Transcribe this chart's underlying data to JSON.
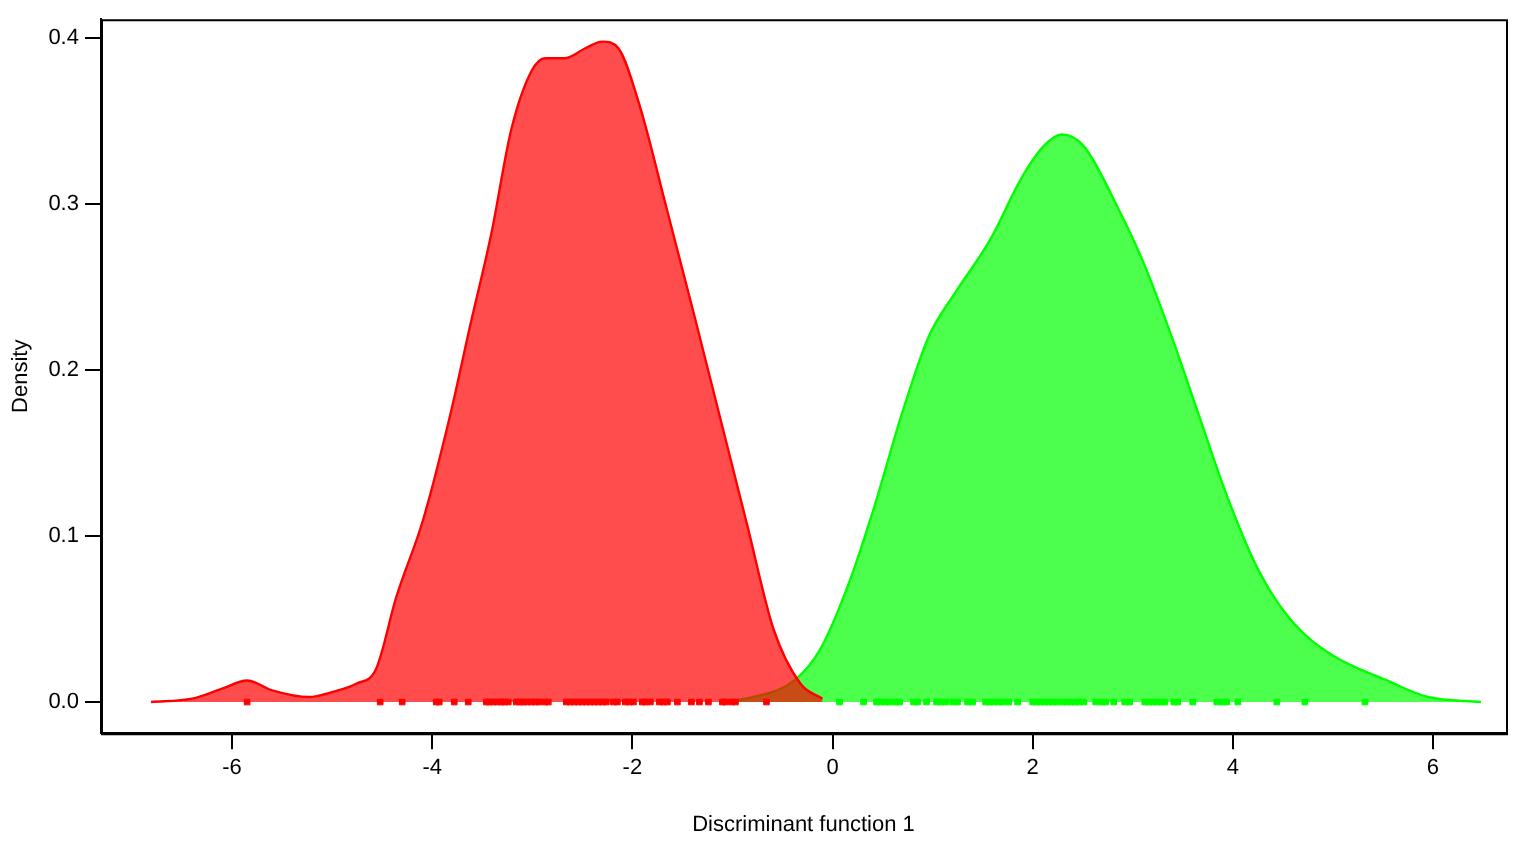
{
  "chart_data": {
    "type": "area",
    "xlabel": "Discriminant function 1",
    "ylabel": "Density",
    "xlim": [
      -7.31,
      6.73
    ],
    "ylim": [
      -0.0188,
      0.4115
    ],
    "xticks": [
      -6,
      -4,
      -2,
      0,
      2,
      4,
      6
    ],
    "yticks": [
      {
        "value": 0,
        "label": "0.0"
      },
      {
        "value": 0.1,
        "label": "0.1"
      },
      {
        "value": 0.2,
        "label": "0.2"
      },
      {
        "value": 0.3,
        "label": "0.3"
      },
      {
        "value": 0.4,
        "label": "0.4"
      }
    ],
    "grid": false,
    "legend": false,
    "series": [
      {
        "color": "#ff0000",
        "x": [
          -6.81,
          -6.4,
          -6.1,
          -5.85,
          -5.6,
          -5.23,
          -5.0,
          -4.76,
          -4.56,
          -4.36,
          -4.09,
          -3.82,
          -3.62,
          -3.41,
          -3.21,
          -3.01,
          -2.87,
          -2.67,
          -2.47,
          -2.3,
          -2.14,
          -1.93,
          -1.66,
          -1.39,
          -1.13,
          -0.85,
          -0.59,
          -0.32,
          -0.1
        ],
        "values": [
          0,
          0.002,
          0.008,
          0.013,
          0.007,
          0.003,
          0.006,
          0.011,
          0.02,
          0.063,
          0.11,
          0.173,
          0.227,
          0.282,
          0.345,
          0.38,
          0.388,
          0.388,
          0.394,
          0.398,
          0.394,
          0.36,
          0.298,
          0.235,
          0.173,
          0.106,
          0.044,
          0.011,
          0.002
        ]
      },
      {
        "color": "#00ff00",
        "x": [
          -1.1,
          -0.79,
          -0.38,
          -0.12,
          0.16,
          0.42,
          0.69,
          0.96,
          1.23,
          1.57,
          1.9,
          2.11,
          2.29,
          2.51,
          2.85,
          3.12,
          3.39,
          3.66,
          3.93,
          4.26,
          4.6,
          5.0,
          5.54,
          5.95,
          6.48
        ],
        "values": [
          0,
          0.003,
          0.013,
          0.032,
          0.071,
          0.118,
          0.173,
          0.22,
          0.247,
          0.278,
          0.317,
          0.335,
          0.342,
          0.335,
          0.298,
          0.263,
          0.22,
          0.173,
          0.126,
          0.079,
          0.048,
          0.028,
          0.013,
          0.003,
          0
        ]
      },
      {
        "type": "scatter",
        "color": "#ff0000",
        "x": [
          -5.85,
          -4.52,
          -4.3,
          -3.96,
          -3.93,
          -3.78,
          -3.64,
          -3.46,
          -3.43,
          -3.39,
          -3.35,
          -3.31,
          -3.28,
          -3.24,
          -3.16,
          -3.12,
          -3.09,
          -3.05,
          -3.01,
          -2.97,
          -2.93,
          -2.87,
          -2.84,
          -2.66,
          -2.62,
          -2.58,
          -2.54,
          -2.5,
          -2.46,
          -2.42,
          -2.38,
          -2.34,
          -2.3,
          -2.26,
          -2.19,
          -2.15,
          -2.07,
          -2.03,
          -1.99,
          -1.9,
          -1.87,
          -1.82,
          -1.73,
          -1.69,
          -1.65,
          -1.55,
          -1.41,
          -1.33,
          -1.24,
          -1.1,
          -1.07,
          -1.01,
          -0.97,
          -0.66
        ],
        "values": [
          0,
          0,
          0,
          0,
          0,
          0,
          0,
          0,
          0,
          0,
          0,
          0,
          0,
          0,
          0,
          0,
          0,
          0,
          0,
          0,
          0,
          0,
          0,
          0,
          0,
          0,
          0,
          0,
          0,
          0,
          0,
          0,
          0,
          0,
          0,
          0,
          0,
          0,
          0,
          0,
          0,
          0,
          0,
          0,
          0,
          0,
          0,
          0,
          0,
          0,
          0,
          0,
          0,
          0
        ]
      },
      {
        "type": "scatter",
        "color": "#00ff00",
        "x": [
          0.07,
          0.31,
          0.44,
          0.48,
          0.53,
          0.57,
          0.63,
          0.67,
          0.81,
          0.85,
          0.94,
          1.04,
          1.08,
          1.13,
          1.2,
          1.25,
          1.35,
          1.4,
          1.53,
          1.57,
          1.61,
          1.66,
          1.7,
          1.76,
          1.85,
          2.0,
          2.04,
          2.08,
          2.12,
          2.16,
          2.2,
          2.24,
          2.3,
          2.34,
          2.38,
          2.42,
          2.46,
          2.51,
          2.63,
          2.69,
          2.73,
          2.81,
          2.92,
          2.97,
          3.12,
          3.16,
          3.2,
          3.24,
          3.28,
          3.32,
          3.41,
          3.45,
          3.6,
          3.84,
          3.89,
          3.94,
          4.05,
          4.44,
          4.72,
          5.32
        ],
        "values": [
          0,
          0,
          0,
          0,
          0,
          0,
          0,
          0,
          0,
          0,
          0,
          0,
          0,
          0,
          0,
          0,
          0,
          0,
          0,
          0,
          0,
          0,
          0,
          0,
          0,
          0,
          0,
          0,
          0,
          0,
          0,
          0,
          0,
          0,
          0,
          0,
          0,
          0,
          0,
          0,
          0,
          0,
          0,
          0,
          0,
          0,
          0,
          0,
          0,
          0,
          0,
          0,
          0,
          0,
          0,
          0,
          0,
          0,
          0,
          0
        ]
      }
    ]
  }
}
